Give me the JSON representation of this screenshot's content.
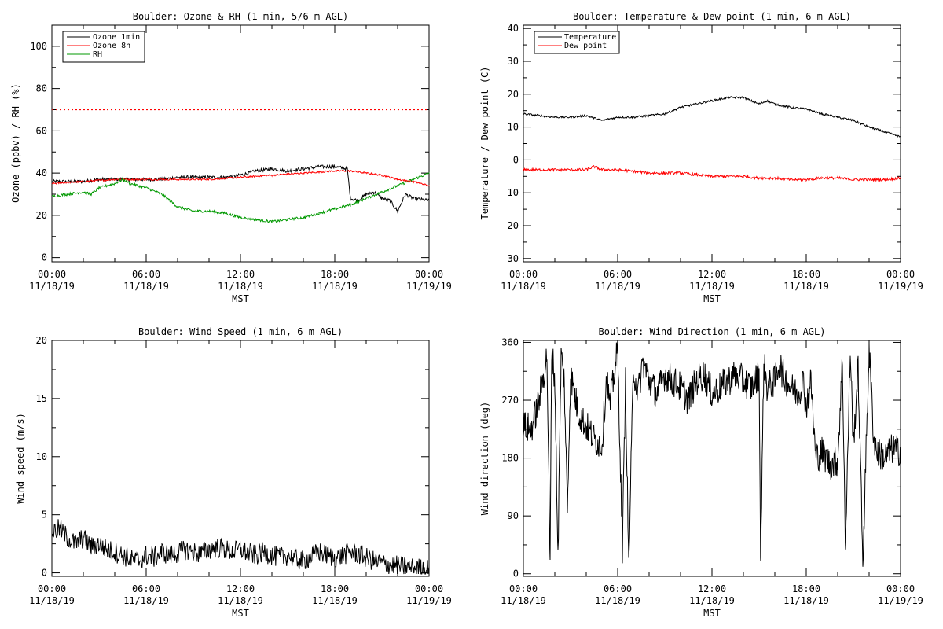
{
  "chart_data": [
    {
      "type": "line",
      "title": "Boulder: Ozone & RH (1 min, 5/6 m AGL)",
      "ylabel": "Ozone (ppbv) / RH (%)",
      "xlabel": "MST",
      "xlim": [
        0,
        24
      ],
      "ylim": [
        -2,
        110
      ],
      "yticks": [
        0,
        20,
        40,
        60,
        80,
        100
      ],
      "xtick_labels": [
        [
          "00:00",
          "11/18/19"
        ],
        [
          "06:00",
          "11/18/19"
        ],
        [
          "12:00",
          "11/18/19"
        ],
        [
          "18:00",
          "11/18/19"
        ],
        [
          "00:00",
          "11/19/19"
        ]
      ],
      "legend_position": "top-left",
      "reference_lines": [
        {
          "y": 70,
          "color": "#ff0000",
          "style": "dotted"
        }
      ],
      "series": [
        {
          "name": "Ozone 1min",
          "color": "#000000",
          "x": [
            0,
            1,
            2,
            3,
            4,
            5,
            6,
            7,
            8,
            9,
            10,
            11,
            12,
            13,
            14,
            15,
            16,
            17,
            18,
            18.8,
            19,
            19.5,
            20,
            20.5,
            21,
            21.5,
            22,
            22.5,
            23,
            24
          ],
          "y": [
            36,
            36,
            36,
            37,
            37,
            37,
            37,
            37,
            38,
            38,
            38,
            38,
            39,
            41,
            42,
            41,
            42,
            43,
            43,
            42,
            28,
            27,
            30,
            31,
            28,
            27,
            22,
            30,
            28,
            27
          ]
        },
        {
          "name": "Ozone 8h",
          "color": "#ff0000",
          "x": [
            0,
            2,
            4,
            6,
            8,
            10,
            12,
            14,
            16,
            18,
            19,
            20,
            21,
            22,
            23,
            24
          ],
          "y": [
            35,
            36,
            37,
            37,
            37,
            37,
            38,
            39,
            40,
            41,
            41,
            40,
            39,
            37,
            36,
            34
          ]
        },
        {
          "name": "RH",
          "color": "#009900",
          "x": [
            0,
            1,
            2,
            2.5,
            3,
            4,
            4.5,
            5,
            6,
            7,
            8,
            9,
            10,
            11,
            12,
            13,
            14,
            15,
            16,
            17,
            18,
            19,
            20,
            21,
            22,
            23,
            24
          ],
          "y": [
            29,
            30,
            31,
            30,
            33,
            35,
            37,
            35,
            33,
            30,
            24,
            22,
            22,
            21,
            19,
            18,
            17,
            18,
            19,
            21,
            23,
            25,
            28,
            31,
            34,
            37,
            40
          ]
        }
      ]
    },
    {
      "type": "line",
      "title": "Boulder: Temperature & Dew point (1 min, 6 m AGL)",
      "ylabel": "Temperature / Dew point (C)",
      "xlabel": "MST",
      "xlim": [
        0,
        24
      ],
      "ylim": [
        -31,
        41
      ],
      "yticks": [
        -30,
        -20,
        -10,
        0,
        10,
        20,
        30,
        40
      ],
      "xtick_labels": [
        [
          "00:00",
          "11/18/19"
        ],
        [
          "06:00",
          "11/18/19"
        ],
        [
          "12:00",
          "11/18/19"
        ],
        [
          "18:00",
          "11/18/19"
        ],
        [
          "00:00",
          "11/19/19"
        ]
      ],
      "legend_position": "top-left",
      "series": [
        {
          "name": "Temperature",
          "color": "#000000",
          "x": [
            0,
            1,
            2,
            3,
            4,
            5,
            6,
            7,
            8,
            9,
            10,
            11,
            12,
            13,
            13.5,
            14,
            15,
            15.5,
            16,
            17,
            18,
            19,
            20,
            21,
            22,
            23,
            24
          ],
          "y": [
            14,
            13.5,
            13,
            13,
            13.5,
            12,
            13,
            13,
            13.5,
            14,
            16,
            17,
            18,
            19,
            19,
            19,
            17,
            18,
            17,
            16,
            15.5,
            14,
            13,
            12,
            10,
            8.5,
            7
          ]
        },
        {
          "name": "Dew point",
          "color": "#ff0000",
          "x": [
            0,
            1,
            2,
            3,
            4,
            4.5,
            5,
            6,
            7,
            8,
            9,
            10,
            11,
            12,
            13,
            14,
            15,
            16,
            17,
            18,
            19,
            20,
            21,
            22,
            23,
            24
          ],
          "y": [
            -3,
            -3,
            -3,
            -3,
            -3,
            -2,
            -3,
            -3,
            -3.5,
            -4,
            -4,
            -4,
            -4.5,
            -5,
            -5,
            -5,
            -5.5,
            -5.5,
            -6,
            -6,
            -5.5,
            -5.5,
            -6,
            -6,
            -6,
            -5.5
          ]
        }
      ]
    },
    {
      "type": "line",
      "title": "Boulder: Wind Speed (1 min, 6 m AGL)",
      "ylabel": "Wind speed (m/s)",
      "xlabel": "MST",
      "xlim": [
        0,
        24
      ],
      "ylim": [
        -0.3,
        20
      ],
      "yticks": [
        0,
        5,
        10,
        15,
        20
      ],
      "xtick_labels": [
        [
          "00:00",
          "11/18/19"
        ],
        [
          "06:00",
          "11/18/19"
        ],
        [
          "12:00",
          "11/18/19"
        ],
        [
          "18:00",
          "11/18/19"
        ],
        [
          "00:00",
          "11/19/19"
        ]
      ],
      "series": [
        {
          "name": "",
          "color": "#000000",
          "x": [
            0,
            0.5,
            1,
            1.5,
            2,
            2.5,
            3,
            3.5,
            4,
            4.5,
            5,
            5.5,
            6,
            6.5,
            7,
            7.5,
            8,
            8.5,
            9,
            9.5,
            10,
            10.5,
            11,
            11.5,
            12,
            12.5,
            13,
            13.5,
            14,
            14.5,
            15,
            15.5,
            16,
            16.5,
            17,
            17.5,
            18,
            18.5,
            19,
            19.5,
            20,
            20.5,
            21,
            21.5,
            22,
            22.5,
            23,
            23.5,
            24
          ],
          "y": [
            3.5,
            3.8,
            3,
            2.5,
            3,
            2.2,
            2.5,
            2,
            1.8,
            1.5,
            1.2,
            1,
            1.5,
            1.3,
            1.8,
            1.5,
            1.7,
            2,
            1.8,
            1.6,
            2,
            2.2,
            2,
            1.8,
            2,
            1.7,
            1.5,
            1.8,
            1.5,
            1.3,
            1.5,
            1.2,
            1,
            1.4,
            1.8,
            1.5,
            1.3,
            1.5,
            1.8,
            1.6,
            1.3,
            1,
            0.8,
            0.7,
            0.6,
            0.5,
            0.4,
            0.4,
            0.3
          ]
        }
      ]
    },
    {
      "type": "line",
      "title": "Boulder: Wind Direction (1 min, 6 m AGL)",
      "ylabel": "Wind direction (deg)",
      "xlabel": "MST",
      "xlim": [
        0,
        24
      ],
      "ylim": [
        -4,
        363
      ],
      "yticks": [
        0,
        90,
        180,
        270,
        360
      ],
      "xtick_labels": [
        [
          "00:00",
          "11/18/19"
        ],
        [
          "06:00",
          "11/18/19"
        ],
        [
          "12:00",
          "11/18/19"
        ],
        [
          "18:00",
          "11/18/19"
        ],
        [
          "00:00",
          "11/19/19"
        ]
      ],
      "series": [
        {
          "name": "",
          "color": "#000000",
          "x": [
            0,
            0.5,
            1,
            1.5,
            1.7,
            1.8,
            2,
            2.2,
            2.4,
            2.6,
            2.8,
            3,
            3.5,
            4,
            4.5,
            5,
            5.3,
            5.5,
            6,
            6.3,
            6.5,
            6.7,
            7,
            7.3,
            7.6,
            8,
            8.5,
            9,
            9.5,
            10,
            10.5,
            11,
            11.5,
            12,
            12.5,
            13,
            13.5,
            14,
            14.5,
            15,
            15.1,
            15.3,
            15.5,
            16,
            16.3,
            16.5,
            17,
            17.5,
            17.8,
            18,
            18.3,
            18.6,
            19,
            19.5,
            20,
            20.3,
            20.5,
            20.8,
            21,
            21.3,
            21.6,
            22,
            22.3,
            22.5,
            23,
            23.5,
            24
          ],
          "y": [
            230,
            225,
            270,
            340,
            10,
            350,
            300,
            30,
            340,
            300,
            100,
            310,
            250,
            230,
            210,
            200,
            310,
            260,
            350,
            40,
            300,
            10,
            320,
            280,
            330,
            300,
            280,
            310,
            300,
            290,
            270,
            300,
            310,
            280,
            290,
            300,
            310,
            300,
            290,
            310,
            20,
            330,
            290,
            300,
            330,
            310,
            290,
            280,
            300,
            260,
            300,
            180,
            190,
            170,
            175,
            330,
            40,
            350,
            200,
            320,
            20,
            350,
            210,
            190,
            180,
            195,
            190
          ]
        }
      ]
    }
  ],
  "panel_text": [
    {
      "title": "Boulder: Ozone & RH (1 min, 5/6 m AGL)",
      "ylabel": "Ozone (ppbv) / RH (%)",
      "xlabel": "MST"
    },
    {
      "title": "Boulder: Temperature & Dew point (1 min, 6 m AGL)",
      "ylabel": "Temperature / Dew point (C)",
      "xlabel": "MST"
    },
    {
      "title": "Boulder: Wind Speed (1 min, 6 m AGL)",
      "ylabel": "Wind speed (m/s)",
      "xlabel": "MST"
    },
    {
      "title": "Boulder: Wind Direction (1 min, 6 m AGL)",
      "ylabel": "Wind direction (deg)",
      "xlabel": "MST"
    }
  ]
}
